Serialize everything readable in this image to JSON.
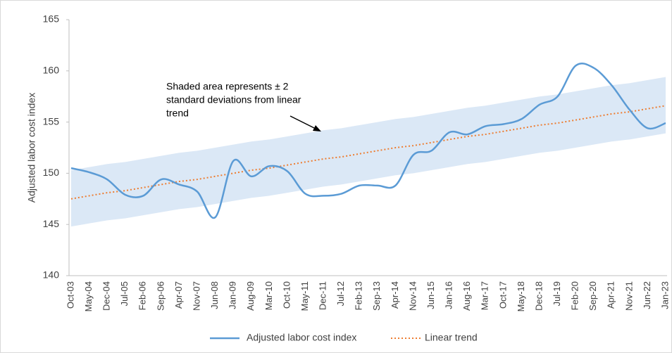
{
  "chart_data": {
    "type": "line",
    "y_label": "Adjusted labor cost index",
    "annotation": [
      "Shaded area represents ± 2",
      "standard deviations from linear",
      "trend"
    ],
    "categories": [
      "Oct-03",
      "May-04",
      "Dec-04",
      "Jul-05",
      "Feb-06",
      "Sep-06",
      "Apr-07",
      "Nov-07",
      "Jun-08",
      "Jan-09",
      "Aug-09",
      "Mar-10",
      "Oct-10",
      "May-11",
      "Dec-11",
      "Jul-12",
      "Feb-13",
      "Sep-13",
      "Apr-14",
      "Nov-14",
      "Jun-15",
      "Jan-16",
      "Aug-16",
      "Mar-17",
      "Oct-17",
      "May-18",
      "Dec-18",
      "Jul-19",
      "Feb-20",
      "Sep-20",
      "Apr-21",
      "Nov-21",
      "Jun-22",
      "Jan-23"
    ],
    "series": [
      {
        "name": "Adjusted labor cost index",
        "color": "#5b9bd5",
        "style": "solid",
        "values": [
          150.5,
          150.1,
          149.4,
          147.9,
          147.8,
          149.4,
          148.9,
          148.2,
          145.7,
          151.2,
          149.7,
          150.7,
          150.2,
          148.0,
          147.8,
          148.0,
          148.8,
          148.8,
          148.8,
          151.8,
          152.2,
          154.0,
          153.8,
          154.6,
          154.8,
          155.3,
          156.7,
          157.5,
          160.5,
          160.3,
          158.6,
          156.2,
          154.4,
          154.9
        ]
      },
      {
        "name": "Linear trend",
        "color": "#ed7d31",
        "style": "dotted",
        "values": [
          147.5,
          147.8,
          148.1,
          148.3,
          148.6,
          148.9,
          149.2,
          149.4,
          149.7,
          150.0,
          150.3,
          150.5,
          150.8,
          151.1,
          151.4,
          151.6,
          151.9,
          152.2,
          152.5,
          152.7,
          153.0,
          153.3,
          153.6,
          153.8,
          154.1,
          154.4,
          154.7,
          154.9,
          155.2,
          155.5,
          155.8,
          156.0,
          156.3,
          156.6
        ]
      }
    ],
    "band": {
      "color": "#dbe8f6",
      "upper": [
        150.3,
        150.6,
        150.9,
        151.1,
        151.4,
        151.7,
        152.0,
        152.2,
        152.5,
        152.8,
        153.1,
        153.3,
        153.6,
        153.9,
        154.2,
        154.4,
        154.7,
        155.0,
        155.3,
        155.5,
        155.8,
        156.1,
        156.4,
        156.6,
        156.9,
        157.2,
        157.5,
        157.7,
        158.0,
        158.3,
        158.6,
        158.8,
        159.1,
        159.4
      ],
      "lower": [
        144.8,
        145.1,
        145.4,
        145.6,
        145.9,
        146.2,
        146.5,
        146.7,
        147.0,
        147.3,
        147.6,
        147.8,
        148.1,
        148.4,
        148.7,
        148.9,
        149.2,
        149.5,
        149.8,
        150.0,
        150.3,
        150.6,
        150.9,
        151.1,
        151.4,
        151.7,
        152.0,
        152.2,
        152.5,
        152.8,
        153.1,
        153.3,
        153.6,
        153.9
      ]
    },
    "ylim": [
      140,
      165
    ],
    "yticks": [
      140,
      145,
      150,
      155,
      160,
      165
    ],
    "grid": false,
    "legend": "bottom"
  }
}
